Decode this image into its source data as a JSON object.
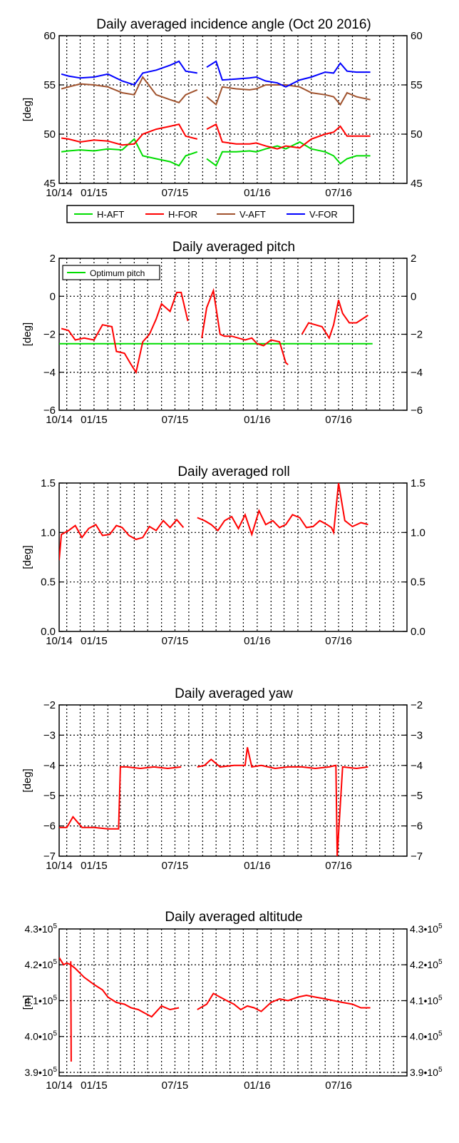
{
  "x_tick_labels": [
    "10/14",
    "01/15",
    "07/15",
    "01/16",
    "07/16"
  ],
  "colors": {
    "axis": "#000000",
    "grid": "#000000",
    "red": "#ff0000",
    "green": "#00dd00",
    "brown": "#a0522d",
    "blue": "#0000ff",
    "white": "#ffffff"
  },
  "chart_data": [
    {
      "type": "line",
      "title": "Daily averaged incidence angle (Oct 20 2016)",
      "ylabel": "[deg]",
      "ylim": [
        45,
        60
      ],
      "yticks": [
        45,
        50,
        55,
        60
      ],
      "ytick_labels": [
        "45",
        "50",
        "55",
        "60"
      ],
      "grid": true,
      "legend": "bottom, outside",
      "series": [
        {
          "name": "H-AFT",
          "color": "green",
          "x": [
            "2014-10-20",
            "2014-11-05",
            "2014-12-01",
            "2015-01-01",
            "2015-02-01",
            "2015-03-05",
            "2015-04-01",
            "2015-04-20",
            "2015-05-20",
            "2015-06-20",
            "2015-07-10",
            "2015-07-25",
            "2015-08-20",
            "2015-09-01",
            "2015-09-10",
            "2015-10-01",
            "2015-10-15",
            "2015-11-15",
            "2015-12-15",
            "2015-12-30",
            "2016-01-20",
            "2016-02-15",
            "2016-03-05",
            "2016-04-05",
            "2016-05-01",
            "2016-06-01",
            "2016-06-20",
            "2016-07-05",
            "2016-07-20",
            "2016-08-10",
            "2016-09-10"
          ],
          "y": [
            48.2,
            48.3,
            48.4,
            48.3,
            48.5,
            48.4,
            49.5,
            47.8,
            47.5,
            47.2,
            46.8,
            47.8,
            48.2,
            null,
            47.5,
            46.8,
            48.2,
            48.2,
            48.3,
            48.2,
            48.5,
            48.8,
            48.5,
            49.2,
            48.5,
            48.2,
            47.8,
            47.0,
            47.5,
            47.8,
            47.8
          ]
        },
        {
          "name": "H-FOR",
          "color": "red",
          "x": [
            "2014-10-20",
            "2014-11-05",
            "2014-12-01",
            "2015-01-01",
            "2015-02-01",
            "2015-03-05",
            "2015-04-01",
            "2015-04-20",
            "2015-05-20",
            "2015-06-20",
            "2015-07-10",
            "2015-07-25",
            "2015-08-20",
            "2015-09-01",
            "2015-09-10",
            "2015-10-01",
            "2015-10-15",
            "2015-11-15",
            "2015-12-15",
            "2015-12-30",
            "2016-01-20",
            "2016-02-15",
            "2016-03-05",
            "2016-04-05",
            "2016-05-01",
            "2016-06-01",
            "2016-06-20",
            "2016-07-05",
            "2016-07-20",
            "2016-08-10",
            "2016-09-10"
          ],
          "y": [
            49.6,
            49.5,
            49.2,
            49.4,
            49.3,
            48.9,
            49.0,
            50.0,
            50.5,
            50.8,
            51.0,
            49.8,
            49.5,
            null,
            50.5,
            51.0,
            49.2,
            49.0,
            49.0,
            49.1,
            48.8,
            48.5,
            48.8,
            48.6,
            49.5,
            50.0,
            50.2,
            50.8,
            49.8,
            49.8,
            49.8
          ]
        },
        {
          "name": "V-AFT",
          "color": "brown",
          "x": [
            "2014-10-20",
            "2014-11-05",
            "2014-12-01",
            "2015-01-01",
            "2015-02-01",
            "2015-03-05",
            "2015-04-01",
            "2015-04-20",
            "2015-05-20",
            "2015-06-20",
            "2015-07-10",
            "2015-07-25",
            "2015-08-20",
            "2015-09-01",
            "2015-09-10",
            "2015-10-01",
            "2015-10-15",
            "2015-11-15",
            "2015-12-15",
            "2015-12-30",
            "2016-01-20",
            "2016-02-15",
            "2016-03-05",
            "2016-04-05",
            "2016-05-01",
            "2016-06-01",
            "2016-06-20",
            "2016-07-05",
            "2016-07-20",
            "2016-08-10",
            "2016-09-10"
          ],
          "y": [
            54.6,
            54.8,
            55.1,
            55.0,
            54.8,
            54.2,
            54.0,
            55.8,
            54.0,
            53.5,
            53.2,
            54.0,
            54.5,
            null,
            53.8,
            53.0,
            54.8,
            54.6,
            54.5,
            54.6,
            55.0,
            55.0,
            55.0,
            54.8,
            54.2,
            54.0,
            53.8,
            53.0,
            54.2,
            53.8,
            53.5
          ]
        },
        {
          "name": "V-FOR",
          "color": "blue",
          "x": [
            "2014-10-20",
            "2014-11-05",
            "2014-12-01",
            "2015-01-01",
            "2015-02-01",
            "2015-03-05",
            "2015-04-01",
            "2015-04-20",
            "2015-05-20",
            "2015-06-20",
            "2015-07-10",
            "2015-07-25",
            "2015-08-20",
            "2015-09-01",
            "2015-09-10",
            "2015-10-01",
            "2015-10-15",
            "2015-11-15",
            "2015-12-15",
            "2015-12-30",
            "2016-01-20",
            "2016-02-15",
            "2016-03-05",
            "2016-04-05",
            "2016-05-01",
            "2016-06-01",
            "2016-06-20",
            "2016-07-05",
            "2016-07-20",
            "2016-08-10",
            "2016-09-10"
          ],
          "y": [
            56.1,
            55.9,
            55.7,
            55.8,
            56.1,
            55.4,
            55.0,
            56.2,
            56.5,
            57.0,
            57.4,
            56.4,
            56.2,
            null,
            56.8,
            57.4,
            55.5,
            55.6,
            55.7,
            55.8,
            55.4,
            55.2,
            54.8,
            55.5,
            55.8,
            56.3,
            56.2,
            57.2,
            56.4,
            56.3,
            56.3
          ]
        }
      ]
    },
    {
      "type": "line",
      "title": "Daily averaged pitch",
      "ylabel": "[deg]",
      "ylim": [
        -6,
        2
      ],
      "yticks": [
        -6,
        -4,
        -2,
        0,
        2
      ],
      "ytick_labels": [
        "−6",
        "−4",
        "−2",
        "0",
        "2"
      ],
      "grid": true,
      "legend": "top-left",
      "series": [
        {
          "name": "Optimum pitch",
          "color": "green",
          "x": [
            "2014-10-15",
            "2016-09-15"
          ],
          "y": [
            -2.5,
            -2.5
          ]
        },
        {
          "name": "",
          "color": "red",
          "x": [
            "2014-10-20",
            "2014-11-05",
            "2014-11-20",
            "2014-12-10",
            "2015-01-01",
            "2015-01-20",
            "2015-02-10",
            "2015-02-20",
            "2015-03-10",
            "2015-03-25",
            "2015-04-05",
            "2015-04-20",
            "2015-05-05",
            "2015-05-20",
            "2015-06-01",
            "2015-06-20",
            "2015-07-05",
            "2015-07-15",
            "2015-07-30",
            "2015-08-15",
            "2015-08-30",
            "2015-09-10",
            "2015-09-25",
            "2015-10-10",
            "2015-10-20",
            "2015-11-05",
            "2015-11-20",
            "2015-12-05",
            "2015-12-20",
            "2016-01-01",
            "2016-01-15",
            "2016-02-01",
            "2016-02-20",
            "2016-03-05",
            "2016-03-10",
            "2016-03-25",
            "2016-04-10",
            "2016-04-25",
            "2016-05-10",
            "2016-05-25",
            "2016-06-10",
            "2016-06-20",
            "2016-07-01",
            "2016-07-10",
            "2016-07-25",
            "2016-08-10",
            "2016-09-05"
          ],
          "y": [
            -1.7,
            -1.8,
            -2.3,
            -2.2,
            -2.3,
            -1.5,
            -1.6,
            -2.9,
            -3.0,
            -3.6,
            -4.0,
            -2.4,
            -2.0,
            -1.2,
            -0.4,
            -0.8,
            0.2,
            0.2,
            -1.3,
            null,
            -2.2,
            -0.6,
            0.3,
            -2.0,
            -2.1,
            -2.1,
            -2.2,
            -2.3,
            -2.2,
            -2.5,
            -2.6,
            -2.3,
            -2.4,
            -3.5,
            -3.6,
            null,
            -2.0,
            -1.4,
            -1.5,
            -1.6,
            -2.2,
            -1.5,
            -0.2,
            -0.9,
            -1.4,
            -1.4,
            -1.0
          ]
        }
      ]
    },
    {
      "type": "line",
      "title": "Daily averaged roll",
      "ylabel": "[deg]",
      "ylim": [
        0.0,
        1.5
      ],
      "yticks": [
        0.0,
        0.5,
        1.0,
        1.5
      ],
      "ytick_labels": [
        "0.0",
        "0.5",
        "1.0",
        "1.5"
      ],
      "grid": true,
      "series": [
        {
          "name": "",
          "color": "red",
          "x": [
            "2014-10-15",
            "2014-10-20",
            "2014-11-05",
            "2014-11-20",
            "2014-12-05",
            "2014-12-20",
            "2015-01-05",
            "2015-01-20",
            "2015-02-05",
            "2015-02-20",
            "2015-03-05",
            "2015-03-20",
            "2015-04-05",
            "2015-04-20",
            "2015-05-05",
            "2015-05-20",
            "2015-06-05",
            "2015-06-20",
            "2015-07-05",
            "2015-07-20",
            "2015-08-05",
            "2015-08-20",
            "2015-09-05",
            "2015-09-20",
            "2015-10-05",
            "2015-10-20",
            "2015-11-05",
            "2015-11-20",
            "2015-12-05",
            "2015-12-20",
            "2016-01-05",
            "2016-01-20",
            "2016-02-05",
            "2016-02-20",
            "2016-03-05",
            "2016-03-20",
            "2016-04-05",
            "2016-04-20",
            "2016-05-05",
            "2016-05-20",
            "2016-06-05",
            "2016-06-15",
            "2016-06-20",
            "2016-07-01",
            "2016-07-15",
            "2016-08-01",
            "2016-08-20",
            "2016-09-05"
          ],
          "y": [
            0.72,
            0.98,
            1.02,
            1.07,
            0.95,
            1.04,
            1.08,
            0.97,
            0.98,
            1.07,
            1.05,
            0.97,
            0.93,
            0.95,
            1.06,
            1.02,
            1.12,
            1.05,
            1.13,
            1.05,
            null,
            1.15,
            1.12,
            1.08,
            1.02,
            1.12,
            1.16,
            1.04,
            1.18,
            0.98,
            1.22,
            1.08,
            1.12,
            1.05,
            1.08,
            1.18,
            1.15,
            1.05,
            1.06,
            1.12,
            1.08,
            1.05,
            1.0,
            1.5,
            1.12,
            1.06,
            1.1,
            1.08
          ]
        }
      ]
    },
    {
      "type": "line",
      "title": "Daily averaged yaw",
      "ylabel": "[deg]",
      "ylim": [
        -7,
        -2
      ],
      "yticks": [
        -7,
        -6,
        -5,
        -4,
        -3,
        -2
      ],
      "ytick_labels": [
        "−7",
        "−6",
        "−5",
        "−4",
        "−3",
        "−2"
      ],
      "grid": true,
      "series": [
        {
          "name": "",
          "color": "red",
          "x": [
            "2014-10-15",
            "2014-11-01",
            "2014-11-15",
            "2014-12-05",
            "2015-01-01",
            "2015-02-01",
            "2015-02-25",
            "2015-03-01",
            "2015-03-15",
            "2015-04-15",
            "2015-05-15",
            "2015-06-15",
            "2015-07-15",
            "2015-08-01",
            "2015-08-20",
            "2015-09-05",
            "2015-09-20",
            "2015-10-10",
            "2015-11-10",
            "2015-12-05",
            "2015-12-10",
            "2015-12-20",
            "2016-01-10",
            "2016-02-10",
            "2016-03-10",
            "2016-04-10",
            "2016-05-10",
            "2016-06-10",
            "2016-06-25",
            "2016-06-28",
            "2016-07-10",
            "2016-08-10",
            "2016-09-05"
          ],
          "y": [
            -6.05,
            -6.05,
            -5.7,
            -6.05,
            -6.05,
            -6.1,
            -6.1,
            -4.05,
            -4.05,
            -4.1,
            -4.05,
            -4.1,
            -4.05,
            null,
            -4.05,
            -4.0,
            -3.8,
            -4.05,
            -4.0,
            -4.0,
            -3.4,
            -4.05,
            -4.0,
            -4.1,
            -4.05,
            -4.05,
            -4.1,
            -4.05,
            -4.0,
            -7.0,
            -4.05,
            -4.1,
            -4.05
          ]
        }
      ]
    },
    {
      "type": "line",
      "title": "Daily averaged altitude",
      "ylabel": "[m]",
      "ylim": [
        389000,
        430000
      ],
      "yticks": [
        390000,
        400000,
        410000,
        420000,
        430000
      ],
      "ytick_labels": [
        [
          "3.9",
          "5"
        ],
        [
          "4.0",
          "5"
        ],
        [
          "4.1",
          "5"
        ],
        [
          "4.2",
          "5"
        ],
        [
          "4.3",
          "5"
        ]
      ],
      "grid": true,
      "series": [
        {
          "name": "",
          "color": "red",
          "x": [
            "2014-10-15",
            "2014-10-25",
            "2014-11-01",
            "2014-11-10",
            "2014-11-20",
            "2014-12-10",
            "2015-01-01",
            "2015-01-20",
            "2015-02-01",
            "2015-02-20",
            "2015-03-10",
            "2015-03-25",
            "2015-04-10",
            "2015-04-25",
            "2015-05-10",
            "2015-06-01",
            "2015-06-20",
            "2015-07-10",
            "2015-08-01",
            "2015-08-20",
            "2015-09-10",
            "2015-09-25",
            "2015-10-10",
            "2015-10-25",
            "2015-11-10",
            "2015-11-25",
            "2015-12-10",
            "2015-12-25",
            "2016-01-10",
            "2016-02-01",
            "2016-02-20",
            "2016-03-10",
            "2016-04-01",
            "2016-04-20",
            "2016-05-10",
            "2016-06-01",
            "2016-06-20",
            "2016-07-10",
            "2016-08-01",
            "2016-08-20",
            "2016-09-10"
          ],
          "y": [
            422000,
            420000,
            420500,
            420000,
            419000,
            416500,
            414500,
            413000,
            411000,
            409500,
            409000,
            408000,
            407500,
            406500,
            405500,
            408500,
            407500,
            408000,
            null,
            407500,
            409000,
            412000,
            411000,
            410000,
            409000,
            407500,
            408500,
            408000,
            407000,
            409500,
            410500,
            410000,
            411000,
            411500,
            411000,
            410500,
            410000,
            409500,
            409000,
            408000,
            408000
          ]
        },
        {
          "name": "",
          "color": "red",
          "x": [
            "2014-11-10",
            "2014-11-11"
          ],
          "y": [
            421000,
            393000
          ]
        }
      ]
    }
  ]
}
